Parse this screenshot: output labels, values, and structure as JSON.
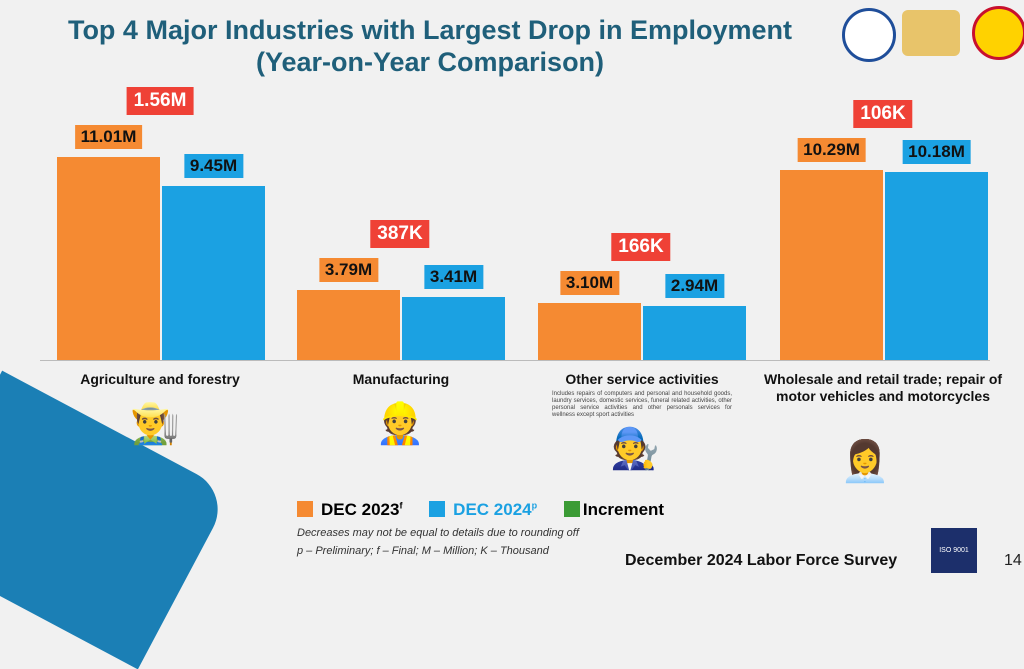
{
  "title_line1": "Top 4 Major Industries with Largest Drop in Employment",
  "title_line2": "(Year-on-Year Comparison)",
  "chart_data": {
    "type": "bar",
    "title": "Top 4 Major Industries with Largest Drop in Employment (Year-on-Year Comparison)",
    "categories": [
      "Agriculture and forestry",
      "Manufacturing",
      "Other service activities",
      "Wholesale and retail trade; repair of motor vehicles and motorcycles"
    ],
    "category_note": "Includes repairs of computers and personal and household goods, laundry services, domestic services, funeral related activities, other personal service activities and other personals services for wellness except sport activities",
    "series": [
      {
        "name": "DEC 2023",
        "sup": "f",
        "color": "#f58a32",
        "values": [
          11.01,
          3.79,
          3.1,
          10.29
        ],
        "labels": [
          "11.01M",
          "3.79M",
          "3.10M",
          "10.29M"
        ]
      },
      {
        "name": "DEC 2024",
        "sup": "p",
        "color": "#1ba1e2",
        "values": [
          9.45,
          3.41,
          2.94,
          10.18
        ],
        "labels": [
          "9.45M",
          "3.41M",
          "2.94M",
          "10.18M"
        ]
      }
    ],
    "decrease_labels": [
      "1.56M",
      "387K",
      "166K",
      "106K"
    ],
    "legend": [
      "DEC 2023",
      "DEC 2024",
      "Increment"
    ],
    "increment_color": "#3b9b35",
    "unit": "Million"
  },
  "notes": [
    "Decreases may not be equal to details due to rounding off",
    "p – Preliminary; f – Final; M – Million; K – Thousand"
  ],
  "footer": "December 2024 Labor Force Survey",
  "page_number": "14",
  "iso_badge": "ISO 9001"
}
